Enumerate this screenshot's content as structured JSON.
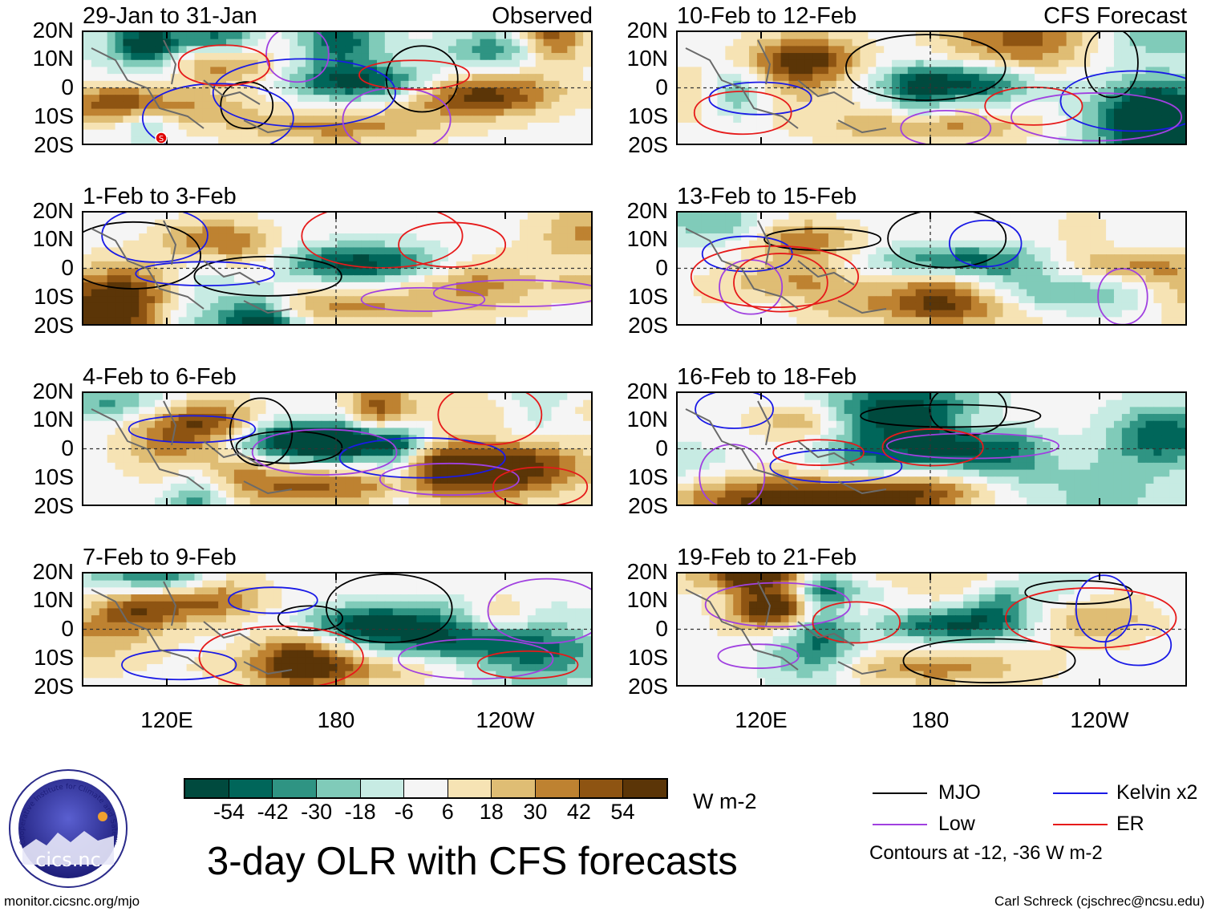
{
  "chart_data": {
    "type": "heatmap",
    "title": "3-day OLR with CFS forecasts",
    "colorbar": {
      "units": "W m-2",
      "ticks": [
        "-54",
        "-42",
        "-30",
        "-18",
        "-6",
        "6",
        "18",
        "30",
        "42",
        "54"
      ],
      "colors": [
        "#004a3e",
        "#00665a",
        "#2f9483",
        "#80cbb9",
        "#c7ebe3",
        "#f5f5f5",
        "#f6e3b4",
        "#dfbd74",
        "#be8231",
        "#8e5412",
        "#5b3507"
      ]
    },
    "x_axis": {
      "ticks": [
        "120E",
        "180",
        "120W"
      ],
      "range": [
        "90E",
        "90W"
      ]
    },
    "y_axis": {
      "ticks": [
        "20N",
        "10N",
        "0",
        "10S",
        "20S"
      ],
      "range": [
        -20,
        20
      ]
    },
    "panels": [
      {
        "title": "29-Jan to 31-Jan",
        "label": "Observed",
        "kind": "observed",
        "marker": "S"
      },
      {
        "title": "1-Feb to 3-Feb",
        "label": "",
        "kind": "observed"
      },
      {
        "title": "4-Feb to 6-Feb",
        "label": "",
        "kind": "observed"
      },
      {
        "title": "7-Feb to 9-Feb",
        "label": "",
        "kind": "observed"
      },
      {
        "title": "10-Feb to 12-Feb",
        "label": "CFS Forecast",
        "kind": "forecast"
      },
      {
        "title": "13-Feb to 15-Feb",
        "label": "",
        "kind": "forecast"
      },
      {
        "title": "16-Feb to 18-Feb",
        "label": "",
        "kind": "forecast"
      },
      {
        "title": "19-Feb to 21-Feb",
        "label": "",
        "kind": "forecast"
      }
    ],
    "legend": [
      {
        "name": "MJO",
        "color": "#000000"
      },
      {
        "name": "Kelvin x2",
        "color": "#1a1ae6"
      },
      {
        "name": "Low",
        "color": "#a040e0"
      },
      {
        "name": "ER",
        "color": "#e61a1a"
      }
    ],
    "contour_note": "Contours at -12, -36 W m-2"
  },
  "logo_text": "cics.nc",
  "logo_ring_text": "Cooperative Institute for Climate and Satellites",
  "footer": {
    "left": "monitor.cicsnc.org/mjo",
    "right": "Carl Schreck (cjschrec@ncsu.edu)"
  }
}
